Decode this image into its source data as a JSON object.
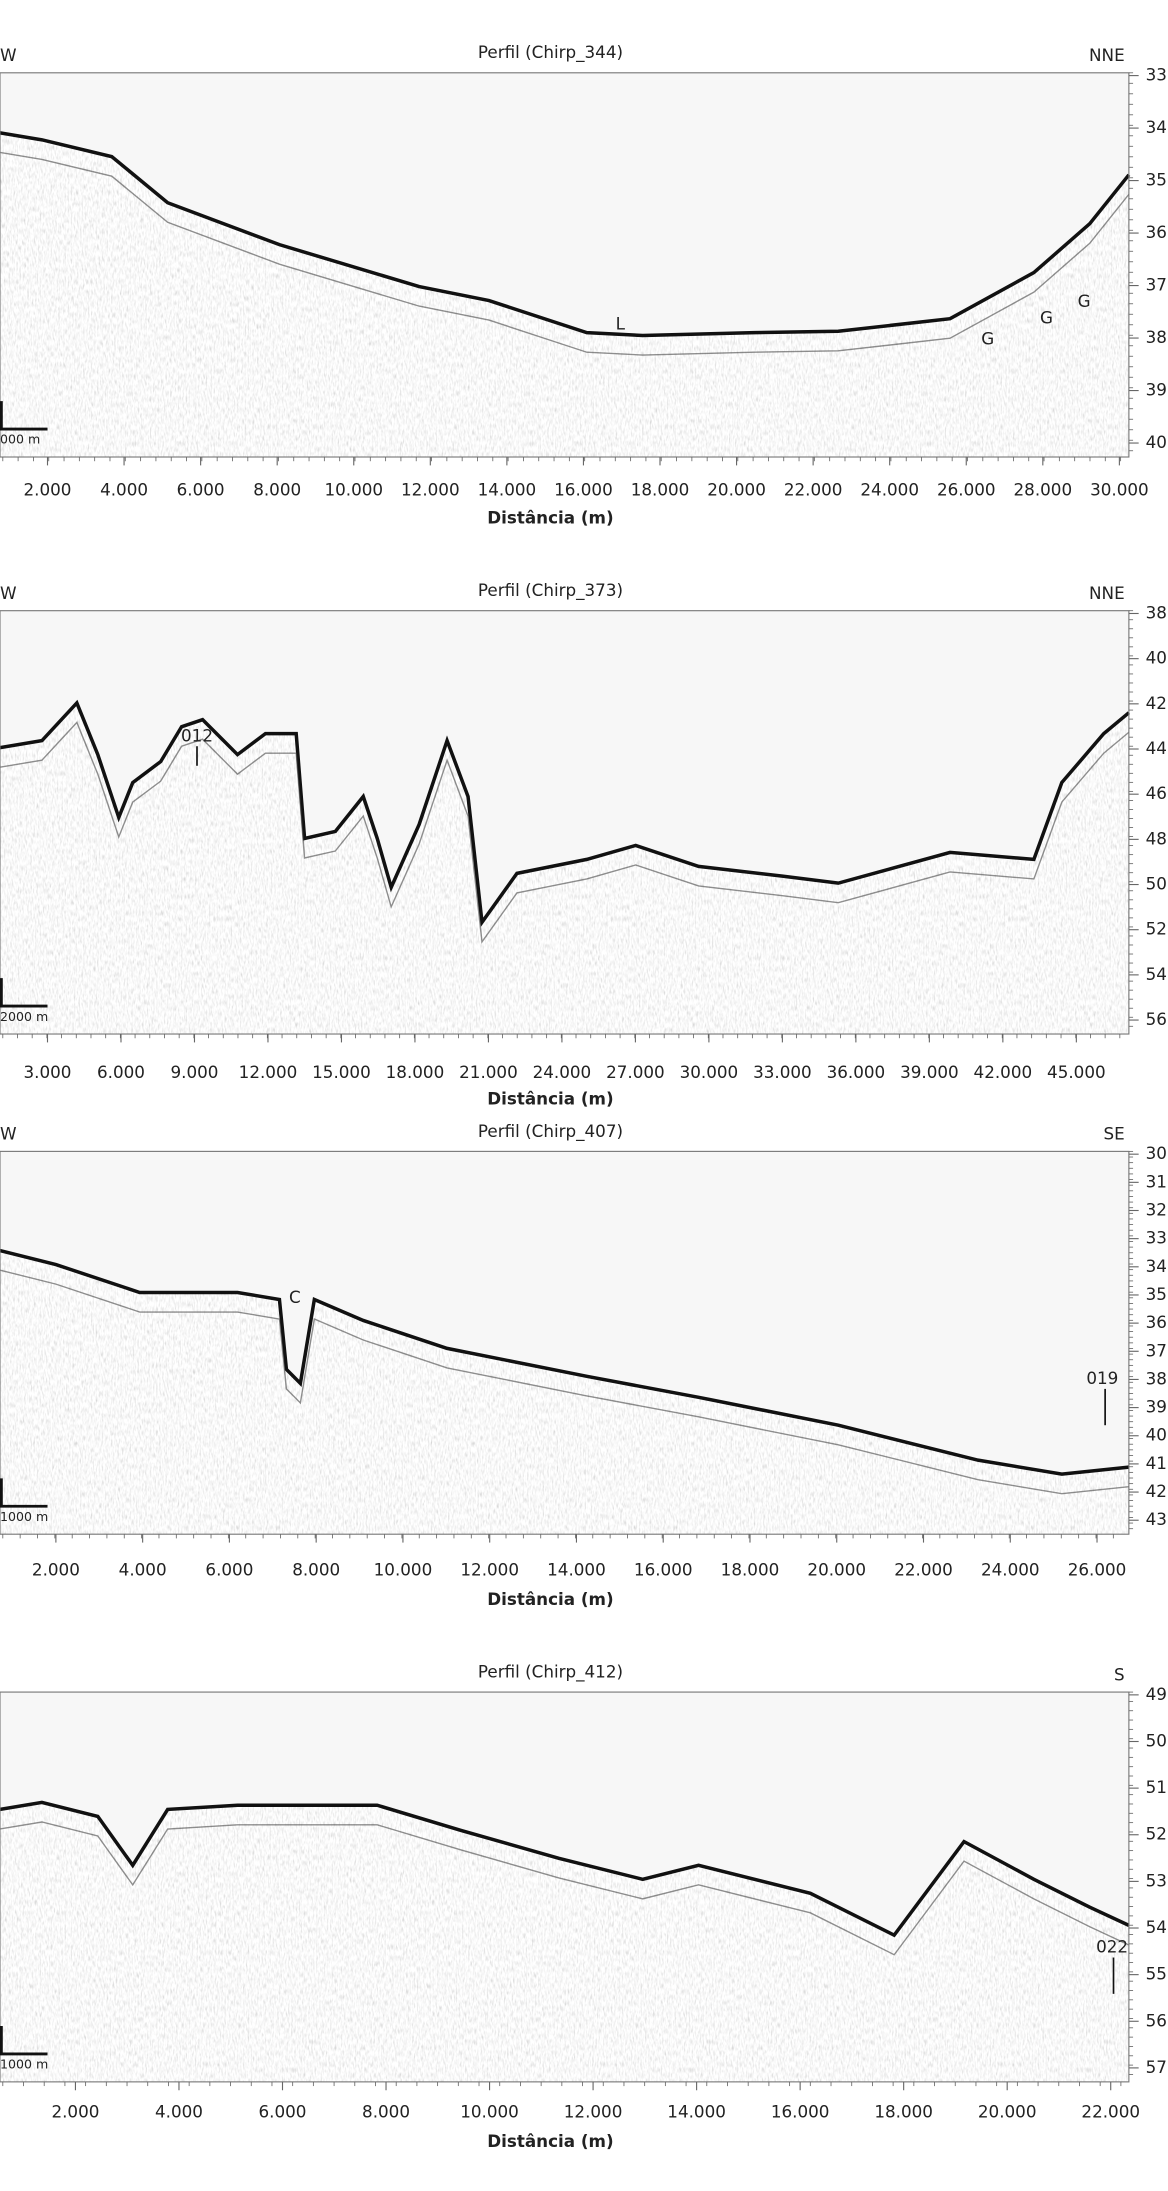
{
  "panels": [
    {
      "title": "Perfil (Chirp_344)",
      "direction_left": "W",
      "direction_right": "NNE",
      "x_ticks": [
        "2.000",
        "4.000",
        "6.000",
        "8.000",
        "10.000",
        "12.000",
        "14.000",
        "16.000",
        "18.000",
        "20.000",
        "22.000",
        "24.000",
        "26.000",
        "28.000",
        "30.000"
      ],
      "y_ticks": [
        "33",
        "34",
        "35",
        "36",
        "37",
        "38",
        "39",
        "40"
      ],
      "x_axis_label": "Distância (m)",
      "scale_bar": "000 m",
      "annotations": [
        "L",
        "G",
        "G",
        "G"
      ]
    },
    {
      "title": "Perfil (Chirp_373)",
      "direction_left": "W",
      "direction_right": "NNE",
      "x_ticks": [
        "3.000",
        "6.000",
        "9.000",
        "12.000",
        "15.000",
        "18.000",
        "21.000",
        "24.000",
        "27.000",
        "30.000",
        "33.000",
        "36.000",
        "39.000",
        "42.000",
        "45.000"
      ],
      "y_ticks": [
        "38",
        "40",
        "42",
        "44",
        "46",
        "48",
        "50",
        "52",
        "54",
        "56"
      ],
      "x_axis_label": "Distância (m)",
      "scale_bar": "2000 m",
      "annotations": [
        "012"
      ]
    },
    {
      "title": "Perfil (Chirp_407)",
      "direction_left": "W",
      "direction_right": "SE",
      "x_ticks": [
        "2.000",
        "4.000",
        "6.000",
        "8.000",
        "10.000",
        "12.000",
        "14.000",
        "16.000",
        "18.000",
        "20.000",
        "22.000",
        "24.000",
        "26.000"
      ],
      "y_ticks": [
        "30",
        "31",
        "32",
        "33",
        "34",
        "35",
        "36",
        "37",
        "38",
        "39",
        "40",
        "41",
        "42",
        "43"
      ],
      "x_axis_label": "Distância (m)",
      "scale_bar": "1000 m",
      "annotations": [
        "C",
        "019"
      ]
    },
    {
      "title": "Perfil (Chirp_412)",
      "direction_right": "S",
      "x_ticks": [
        "2.000",
        "4.000",
        "6.000",
        "8.000",
        "10.000",
        "12.000",
        "14.000",
        "16.000",
        "18.000",
        "20.000",
        "22.000"
      ],
      "y_ticks": [
        "49",
        "50",
        "51",
        "52",
        "53",
        "54",
        "55",
        "56",
        "57"
      ],
      "x_axis_label": "Distância (m)",
      "scale_bar": "1000 m",
      "annotations": [
        "022"
      ]
    }
  ]
}
